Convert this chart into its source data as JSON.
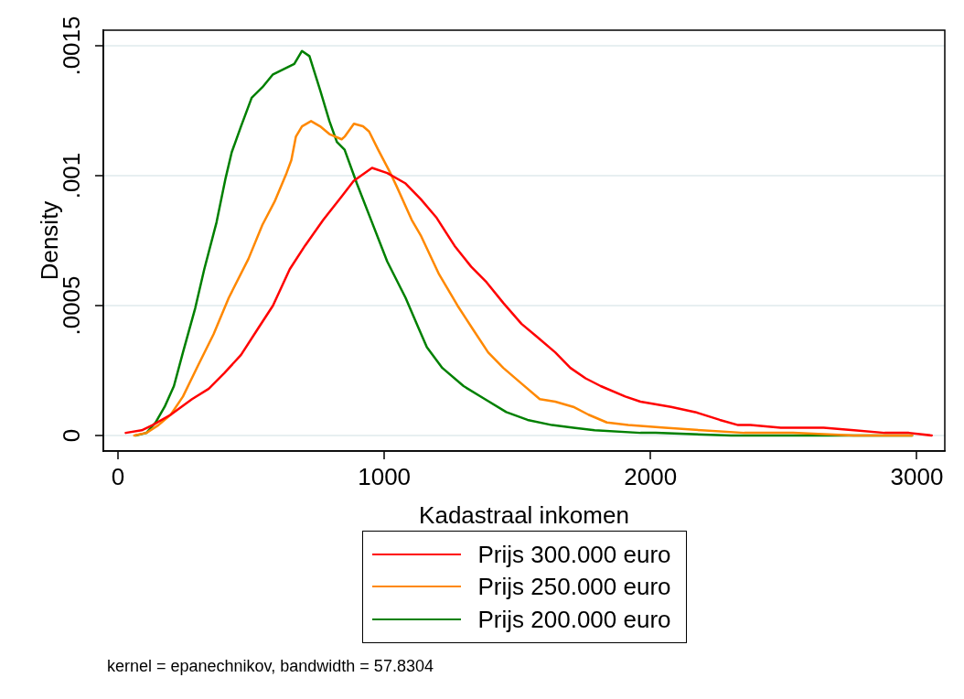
{
  "chart_data": {
    "type": "line",
    "xlabel": "Kadastraal inkomen",
    "ylabel": "Density",
    "xlim": [
      -55,
      3105
    ],
    "xticks": [
      0,
      1000,
      2000,
      3000
    ],
    "ylim": [
      -6e-05,
      0.00156
    ],
    "yticks": [
      0,
      {
        "value": 0.0005,
        "label": ".0005"
      },
      {
        "value": 0.001,
        "label": ".001"
      },
      {
        "value": 0.0015,
        "label": ".0015"
      }
    ],
    "grid": "y",
    "legend": "bottom",
    "marker": "none",
    "line_style": "solid",
    "series": [
      {
        "name": "Prijs 300.000 euro",
        "color": "#ff0000",
        "x": [
          29,
          89,
          130,
          198,
          278,
          341,
          399,
          462,
          525,
          582,
          645,
          702,
          771,
          840,
          885,
          954,
          1011,
          1080,
          1137,
          1195,
          1264,
          1326,
          1384,
          1447,
          1515,
          1573,
          1642,
          1699,
          1756,
          1813,
          1905,
          1962,
          2077,
          2168,
          2260,
          2329,
          2375,
          2489,
          2650,
          2764,
          2879,
          2970,
          3056
        ],
        "values": [
          1e-05,
          2e-05,
          4e-05,
          8e-05,
          0.00014,
          0.00018,
          0.00024,
          0.00031,
          0.00041,
          0.0005,
          0.00064,
          0.00073,
          0.00083,
          0.00092,
          0.00098,
          0.00103,
          0.00101,
          0.00097,
          0.00091,
          0.00084,
          0.00073,
          0.00065,
          0.00059,
          0.00051,
          0.00043,
          0.00038,
          0.00032,
          0.00026,
          0.00022,
          0.00019,
          0.00015,
          0.00013,
          0.00011,
          9e-05,
          6e-05,
          4e-05,
          4e-05,
          3e-05,
          3e-05,
          2e-05,
          1e-05,
          1e-05,
          0
        ]
      },
      {
        "name": "Prijs 250.000 euro",
        "color": "#ff8800",
        "x": [
          61,
          107,
          152,
          198,
          244,
          301,
          359,
          416,
          490,
          542,
          588,
          633,
          651,
          668,
          691,
          725,
          759,
          794,
          840,
          851,
          886,
          920,
          943,
          977,
          1023,
          1046,
          1103,
          1137,
          1206,
          1275,
          1332,
          1390,
          1447,
          1515,
          1584,
          1642,
          1710,
          1767,
          1836,
          1916,
          2054,
          2191,
          2352,
          2535,
          2764,
          2982
        ],
        "values": [
          0,
          1e-05,
          4e-05,
          8e-05,
          0.00015,
          0.00027,
          0.00039,
          0.00053,
          0.00068,
          0.00081,
          0.0009,
          0.00101,
          0.00106,
          0.00115,
          0.00119,
          0.00121,
          0.00119,
          0.00116,
          0.00114,
          0.00115,
          0.0012,
          0.00119,
          0.00117,
          0.0011,
          0.00101,
          0.00096,
          0.00083,
          0.00077,
          0.00062,
          0.0005,
          0.00041,
          0.00032,
          0.00026,
          0.0002,
          0.00014,
          0.00013,
          0.00011,
          8e-05,
          5e-05,
          4e-05,
          3e-05,
          2e-05,
          1e-05,
          1e-05,
          0,
          0
        ]
      },
      {
        "name": "Prijs 200.000 euro",
        "color": "#008000",
        "x": [
          66,
          107,
          141,
          175,
          210,
          244,
          290,
          324,
          370,
          404,
          427,
          462,
          502,
          542,
          582,
          622,
          662,
          691,
          719,
          759,
          794,
          822,
          851,
          897,
          954,
          1011,
          1080,
          1126,
          1160,
          1218,
          1298,
          1378,
          1458,
          1538,
          1630,
          1710,
          1790,
          1962,
          2019,
          2302,
          2982
        ],
        "values": [
          0,
          1e-05,
          5e-05,
          0.00011,
          0.00019,
          0.00032,
          0.00049,
          0.00064,
          0.00082,
          0.00099,
          0.00109,
          0.00119,
          0.0013,
          0.00134,
          0.00139,
          0.00141,
          0.00143,
          0.00148,
          0.00146,
          0.00133,
          0.00121,
          0.00113,
          0.0011,
          0.00097,
          0.00082,
          0.00067,
          0.00053,
          0.00042,
          0.00034,
          0.00026,
          0.00019,
          0.00014,
          9e-05,
          6e-05,
          4e-05,
          3e-05,
          2e-05,
          1e-05,
          1e-05,
          0,
          0
        ]
      }
    ],
    "annotations": [
      "kernel = epanechnikov, bandwidth = 57.8304"
    ]
  }
}
